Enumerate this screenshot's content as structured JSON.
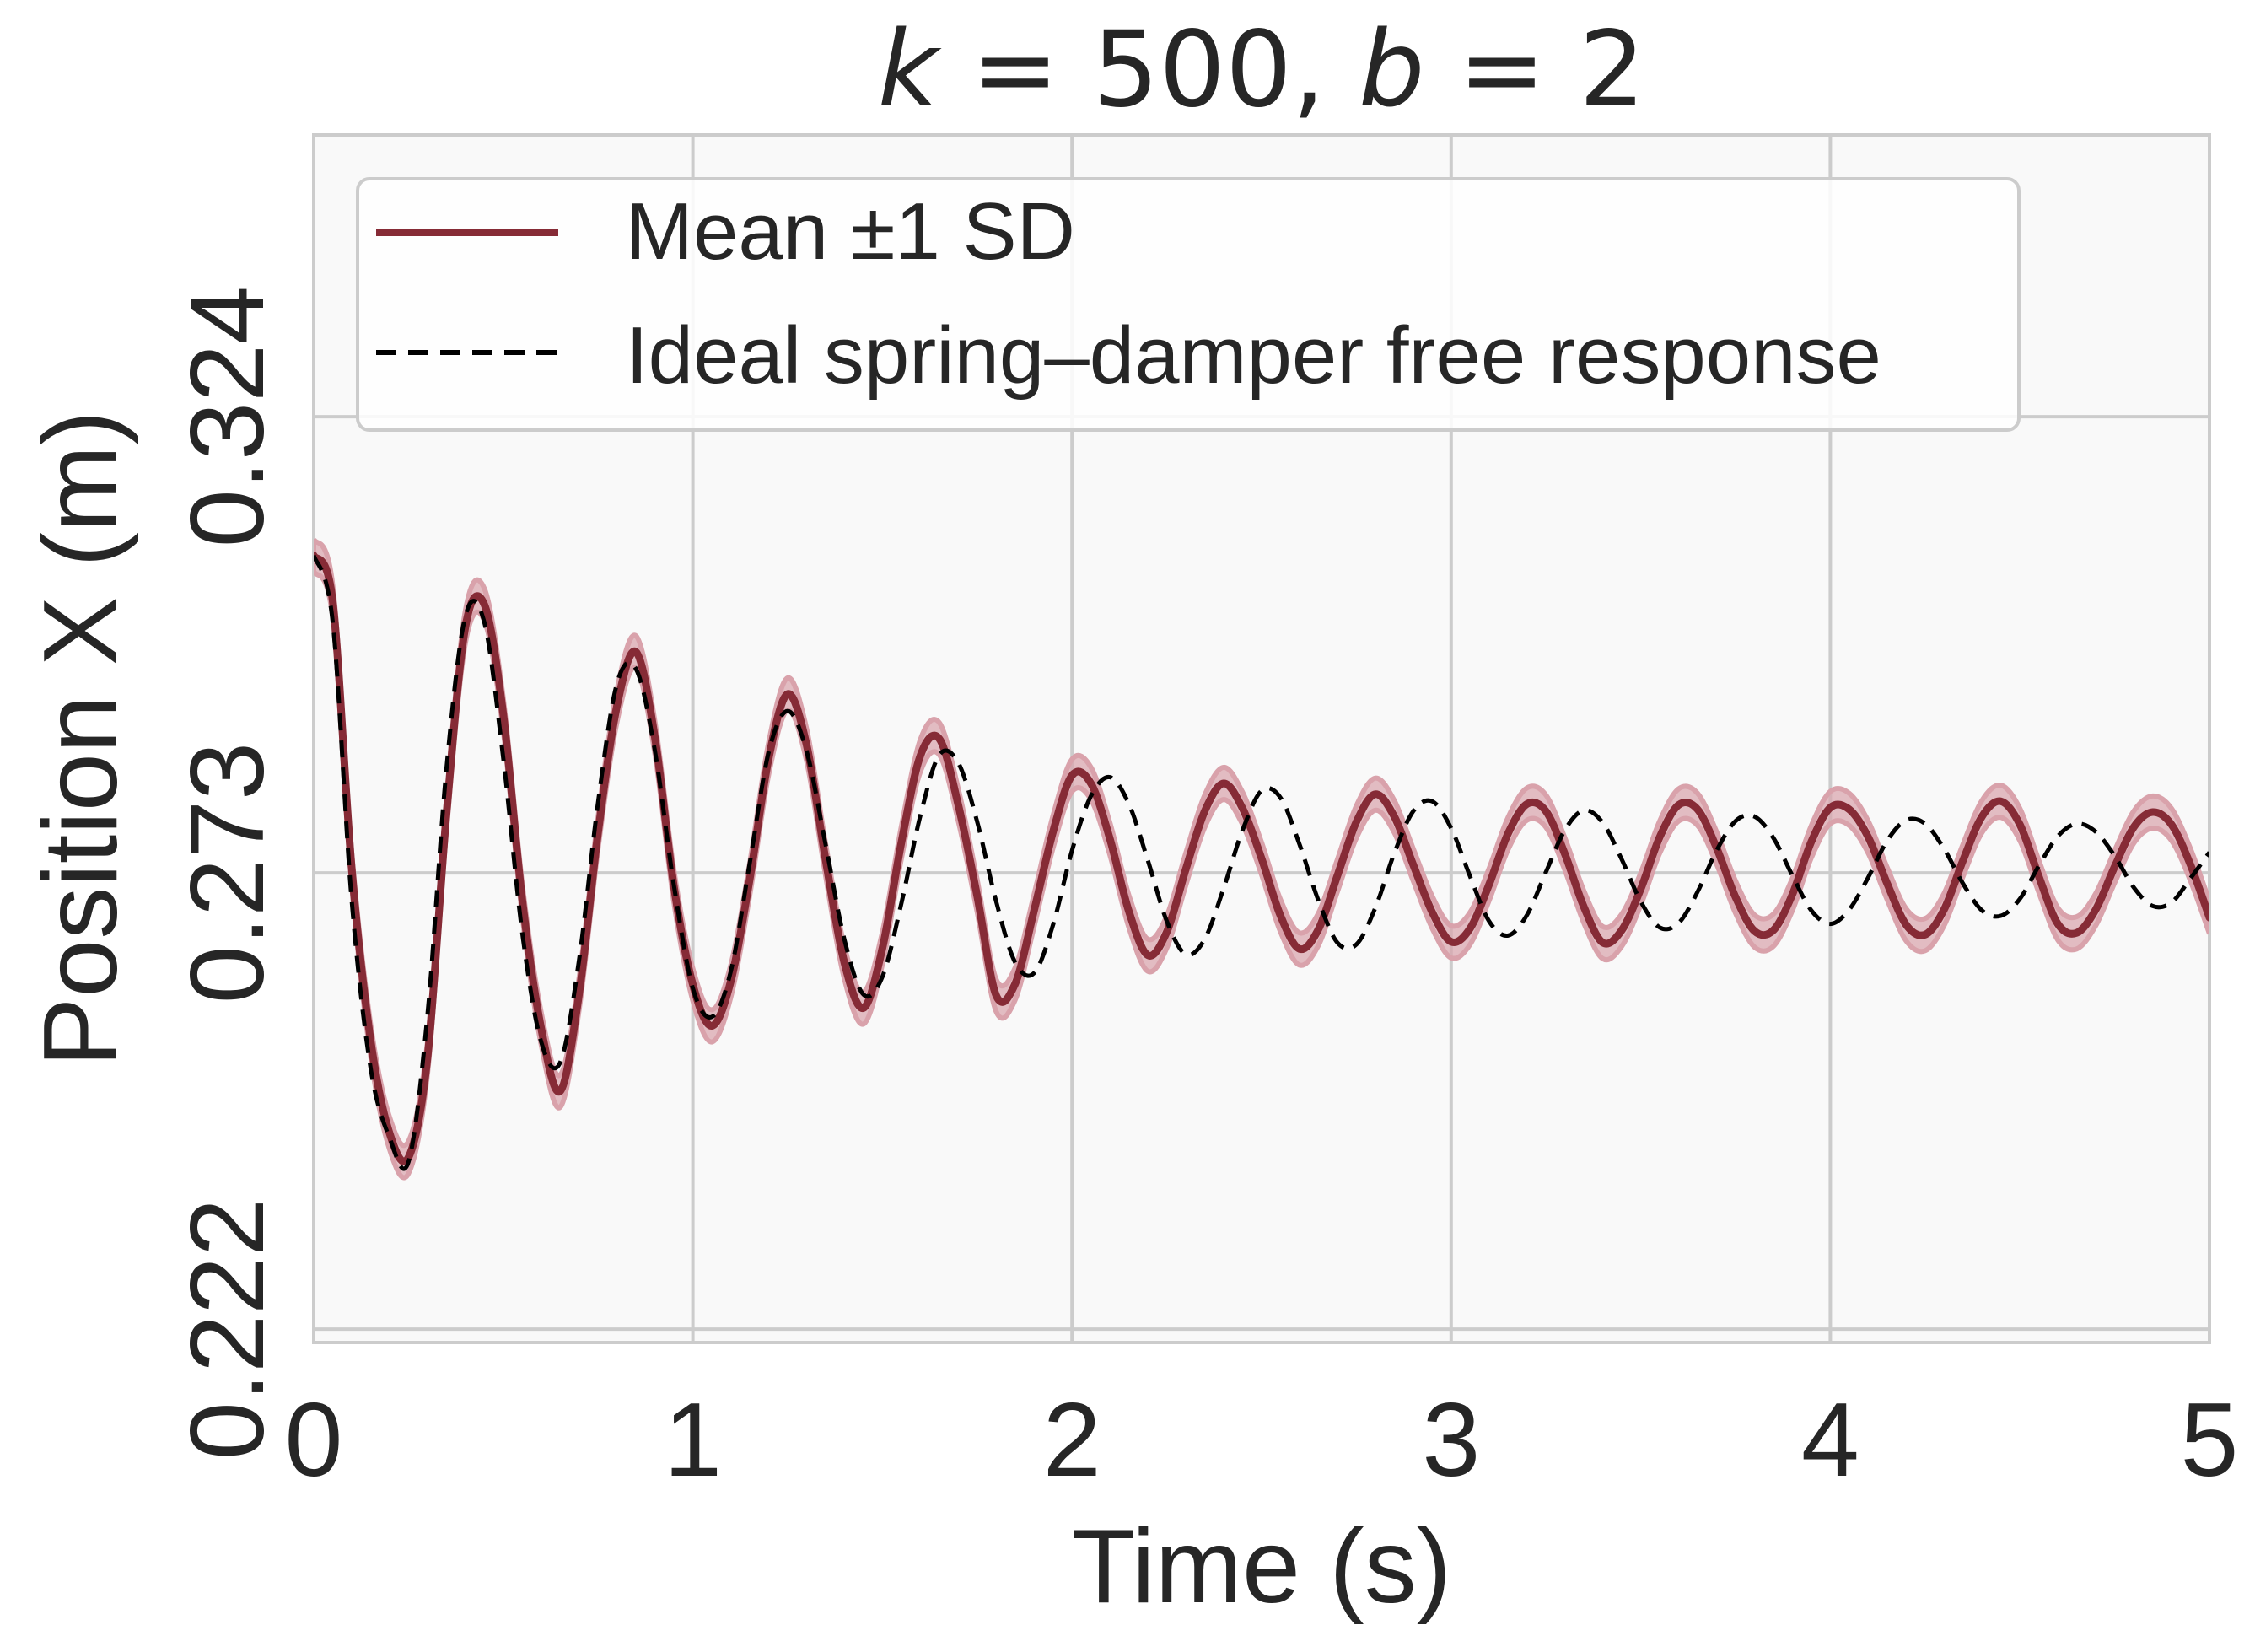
{
  "chart_data": {
    "type": "line",
    "title_parts": [
      {
        "text": "k",
        "italic": true
      },
      {
        "text": " = 500, ",
        "italic": false
      },
      {
        "text": "b",
        "italic": true
      },
      {
        "text": " = 2",
        "italic": false
      }
    ],
    "xlabel": "Time (s)",
    "ylabel": "Position X (m)",
    "xlim": [
      0,
      5
    ],
    "ylim": [
      0.2205,
      0.3555
    ],
    "xticks": [
      0,
      1,
      2,
      3,
      4,
      5
    ],
    "xtick_labels": [
      "0",
      "1",
      "2",
      "3",
      "4",
      "5"
    ],
    "yticks": [
      0.222,
      0.273,
      0.324
    ],
    "ytick_labels": [
      "0.222",
      "0.273",
      "0.324"
    ],
    "grid": true,
    "legend_position": "top-left",
    "legend": [
      {
        "label": "Mean ±1 SD",
        "style": "solid",
        "color": "#862b36"
      },
      {
        "label": "Ideal spring–damper free response",
        "style": "dashed",
        "color": "#000000"
      }
    ],
    "series": [
      {
        "name": "Mean ±1 SD",
        "style": "solid",
        "color": "#862b36",
        "band_color": "#d9a2ab",
        "sd": 0.0018,
        "x": [
          0,
          0.05,
          0.1,
          0.15,
          0.2,
          0.25,
          0.3,
          0.35,
          0.4,
          0.45,
          0.5,
          0.55,
          0.6,
          0.65,
          0.7,
          0.75,
          0.8,
          0.85,
          0.9,
          0.95,
          1.0,
          1.05,
          1.1,
          1.15,
          1.2,
          1.25,
          1.3,
          1.35,
          1.4,
          1.45,
          1.5,
          1.55,
          1.6,
          1.65,
          1.7,
          1.75,
          1.8,
          1.85,
          1.9,
          1.95,
          2.0,
          2.05,
          2.1,
          2.15,
          2.2,
          2.25,
          2.3,
          2.35,
          2.4,
          2.45,
          2.5,
          2.55,
          2.6,
          2.65,
          2.7,
          2.75,
          2.8,
          2.85,
          2.9,
          2.95,
          3.0,
          3.05,
          3.1,
          3.15,
          3.2,
          3.25,
          3.3,
          3.35,
          3.4,
          3.45,
          3.5,
          3.55,
          3.6,
          3.65,
          3.7,
          3.75,
          3.8,
          3.85,
          3.9,
          3.95,
          4.0,
          4.05,
          4.1,
          4.15,
          4.2,
          4.25,
          4.3,
          4.35,
          4.4,
          4.45,
          4.5,
          4.55,
          4.6,
          4.65,
          4.7,
          4.75,
          4.8,
          4.85,
          4.9,
          4.95,
          5.0
        ],
        "y": [
          0.3085,
          0.3034,
          0.2736,
          0.2543,
          0.2439,
          0.2412,
          0.2523,
          0.2795,
          0.3005,
          0.303,
          0.2907,
          0.27,
          0.2556,
          0.2486,
          0.2595,
          0.2775,
          0.2917,
          0.2977,
          0.2881,
          0.2715,
          0.2605,
          0.2559,
          0.2609,
          0.2723,
          0.2858,
          0.293,
          0.2873,
          0.2745,
          0.2629,
          0.2579,
          0.2646,
          0.2764,
          0.2861,
          0.288,
          0.2806,
          0.2704,
          0.2593,
          0.2606,
          0.2688,
          0.2776,
          0.2839,
          0.283,
          0.2768,
          0.2687,
          0.2638,
          0.2664,
          0.2734,
          0.2799,
          0.283,
          0.2802,
          0.2746,
          0.2682,
          0.2645,
          0.2667,
          0.2727,
          0.2787,
          0.2818,
          0.2793,
          0.2739,
          0.2686,
          0.2653,
          0.2668,
          0.2717,
          0.2774,
          0.2807,
          0.2799,
          0.2751,
          0.2692,
          0.2652,
          0.2666,
          0.2712,
          0.277,
          0.2806,
          0.2801,
          0.2758,
          0.2703,
          0.2665,
          0.2666,
          0.2706,
          0.2765,
          0.2803,
          0.2801,
          0.277,
          0.2718,
          0.2672,
          0.2661,
          0.2689,
          0.2744,
          0.2793,
          0.281,
          0.2784,
          0.2726,
          0.2673,
          0.2663,
          0.2689,
          0.2737,
          0.2781,
          0.2798,
          0.2784,
          0.2739,
          0.268
        ]
      },
      {
        "name": "Ideal spring–damper free response",
        "style": "dashed",
        "color": "#000000",
        "x": [
          0,
          0.05,
          0.1,
          0.15,
          0.2,
          0.25,
          0.3,
          0.35,
          0.4,
          0.45,
          0.5,
          0.55,
          0.6,
          0.65,
          0.7,
          0.75,
          0.8,
          0.85,
          0.9,
          0.95,
          1.0,
          1.05,
          1.1,
          1.15,
          1.2,
          1.25,
          1.3,
          1.35,
          1.4,
          1.45,
          1.5,
          1.55,
          1.6,
          1.65,
          1.7,
          1.75,
          1.8,
          1.85,
          1.9,
          1.95,
          2.0,
          2.05,
          2.1,
          2.15,
          2.2,
          2.25,
          2.3,
          2.35,
          2.4,
          2.45,
          2.5,
          2.55,
          2.6,
          2.65,
          2.7,
          2.75,
          2.8,
          2.85,
          2.9,
          2.95,
          3.0,
          3.05,
          3.1,
          3.15,
          3.2,
          3.25,
          3.3,
          3.35,
          3.4,
          3.45,
          3.5,
          3.55,
          3.6,
          3.65,
          3.7,
          3.75,
          3.8,
          3.85,
          3.9,
          3.95,
          4.0,
          4.05,
          4.1,
          4.15,
          4.2,
          4.25,
          4.3,
          4.35,
          4.4,
          4.45,
          4.5,
          4.55,
          4.6,
          4.65,
          4.7,
          4.75,
          4.8,
          4.85,
          4.9,
          4.95,
          5.0
        ],
        "y": [
          0.3085,
          0.3011,
          0.27,
          0.2512,
          0.2434,
          0.2407,
          0.2571,
          0.2846,
          0.3017,
          0.301,
          0.2858,
          0.2663,
          0.2541,
          0.2518,
          0.2633,
          0.2809,
          0.2942,
          0.2958,
          0.2866,
          0.2716,
          0.2601,
          0.2569,
          0.262,
          0.2741,
          0.2865,
          0.2911,
          0.2866,
          0.2762,
          0.2655,
          0.2594,
          0.2614,
          0.2696,
          0.2794,
          0.2862,
          0.2853,
          0.2787,
          0.2698,
          0.263,
          0.2618,
          0.2672,
          0.2755,
          0.2816,
          0.2837,
          0.2807,
          0.2744,
          0.2676,
          0.2639,
          0.2656,
          0.2713,
          0.2778,
          0.2822,
          0.2814,
          0.2762,
          0.2699,
          0.2652,
          0.265,
          0.2691,
          0.2752,
          0.2799,
          0.281,
          0.278,
          0.2726,
          0.2676,
          0.266,
          0.2683,
          0.2731,
          0.2778,
          0.28,
          0.2786,
          0.2745,
          0.2698,
          0.2669,
          0.2674,
          0.2709,
          0.2755,
          0.2788,
          0.2793,
          0.2769,
          0.2727,
          0.2688,
          0.2673,
          0.2689,
          0.2725,
          0.2766,
          0.2789,
          0.2785,
          0.2757,
          0.2718,
          0.2688,
          0.2682,
          0.2701,
          0.2738,
          0.2771,
          0.2785,
          0.2776,
          0.2749,
          0.2714,
          0.2693,
          0.2697,
          0.2724,
          0.2753
        ]
      }
    ]
  }
}
